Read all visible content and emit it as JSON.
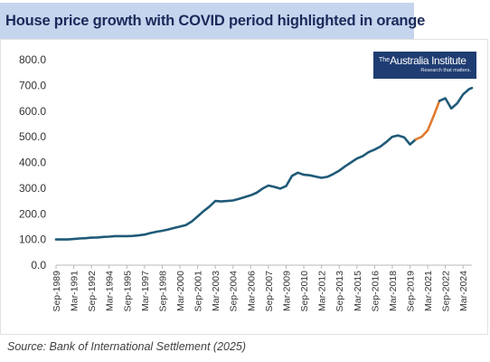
{
  "title": "House price growth with COVID period highlighted in orange",
  "logo": {
    "the": "The",
    "name": "Australia Institute",
    "tagline": "Research that matters."
  },
  "source": "Source: Bank of International Settlement (2025)",
  "colors": {
    "main_series": "#1f5a78",
    "covid_series": "#e07a2f",
    "title_bg": "#c6d5ee",
    "logo_bg": "#1f3d73"
  },
  "chart_data": {
    "type": "line",
    "title": "House price growth with COVID period highlighted in orange",
    "ylim": [
      0,
      800
    ],
    "yticks": [
      "0.0",
      "100.0",
      "200.0",
      "300.0",
      "400.0",
      "500.0",
      "600.0",
      "700.0",
      "800.0"
    ],
    "xticks": [
      "Sep-1989",
      "Mar-1991",
      "Sep-1992",
      "Mar-1994",
      "Sep-1995",
      "Mar-1997",
      "Sep-1998",
      "Mar-2000",
      "Sep-2001",
      "Mar-2003",
      "Sep-2004",
      "Mar-2006",
      "Sep-2007",
      "Mar-2009",
      "Sep-2010",
      "Mar-2012",
      "Sep-2013",
      "Mar-2015",
      "Sep-2016",
      "Mar-2018",
      "Sep-2019",
      "Mar-2021",
      "Sep-2022",
      "Mar-2024"
    ],
    "grid": false,
    "legend": "none",
    "series": [
      {
        "x": [
          "Sep-1989",
          "Mar-1990",
          "Sep-1990",
          "Mar-1991",
          "Sep-1991",
          "Mar-1992",
          "Sep-1992",
          "Mar-1993",
          "Sep-1993",
          "Mar-1994",
          "Sep-1994",
          "Mar-1995",
          "Sep-1995",
          "Mar-1996",
          "Sep-1996",
          "Mar-1997",
          "Sep-1997",
          "Mar-1998",
          "Sep-1998",
          "Mar-1999",
          "Sep-1999",
          "Mar-2000",
          "Sep-2000",
          "Mar-2001",
          "Sep-2001",
          "Mar-2002",
          "Sep-2002",
          "Mar-2003",
          "Sep-2003",
          "Mar-2004",
          "Sep-2004",
          "Mar-2005",
          "Sep-2005",
          "Mar-2006",
          "Sep-2006",
          "Mar-2007",
          "Sep-2007",
          "Mar-2008",
          "Sep-2008",
          "Mar-2009",
          "Sep-2009",
          "Mar-2010",
          "Sep-2010",
          "Mar-2011",
          "Sep-2011",
          "Mar-2012",
          "Sep-2012",
          "Mar-2013",
          "Sep-2013",
          "Mar-2014",
          "Sep-2014",
          "Mar-2015",
          "Sep-2015",
          "Mar-2016",
          "Sep-2016",
          "Mar-2017",
          "Sep-2017",
          "Mar-2018",
          "Sep-2018",
          "Mar-2019",
          "Sep-2019",
          "Mar-2020"
        ],
        "values": [
          100,
          100,
          100,
          102,
          104,
          105,
          107,
          108,
          110,
          111,
          113,
          113,
          113,
          114,
          116,
          119,
          125,
          130,
          134,
          139,
          145,
          150,
          156,
          170,
          190,
          210,
          228,
          250,
          248,
          250,
          252,
          258,
          265,
          272,
          282,
          298,
          310,
          305,
          298,
          308,
          348,
          360,
          352,
          350,
          345,
          340,
          344,
          355,
          368,
          385,
          400,
          415,
          425,
          440,
          450,
          462,
          480,
          500,
          505,
          498,
          470,
          490
        ]
      },
      {
        "x": [
          "Mar-2020",
          "Sep-2020",
          "Mar-2021",
          "Sep-2021",
          "Mar-2022"
        ],
        "values": [
          490,
          500,
          525,
          580,
          640
        ]
      },
      {
        "x": [
          "Mar-2022",
          "Sep-2022",
          "Mar-2023",
          "Sep-2023",
          "Mar-2024",
          "Sep-2024",
          "Dec-2024"
        ],
        "values": [
          640,
          650,
          610,
          630,
          665,
          685,
          690
        ]
      }
    ]
  }
}
